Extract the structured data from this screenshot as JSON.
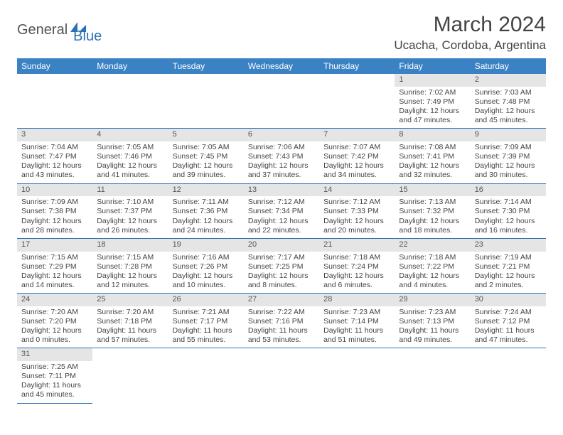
{
  "logo": {
    "general": "General",
    "blue": "Blue"
  },
  "title": "March 2024",
  "location": "Ucacha, Cordoba, Argentina",
  "colors": {
    "header_bg": "#3b82c4",
    "header_text": "#ffffff",
    "daynum_bg": "#e5e5e5",
    "rule": "#2c71b8",
    "text": "#444444",
    "logo_gray": "#555555",
    "logo_blue": "#2c71b8"
  },
  "day_headers": [
    "Sunday",
    "Monday",
    "Tuesday",
    "Wednesday",
    "Thursday",
    "Friday",
    "Saturday"
  ],
  "weeks": [
    [
      null,
      null,
      null,
      null,
      null,
      {
        "n": "1",
        "sr": "Sunrise: 7:02 AM",
        "ss": "Sunset: 7:49 PM",
        "dl": "Daylight: 12 hours and 47 minutes."
      },
      {
        "n": "2",
        "sr": "Sunrise: 7:03 AM",
        "ss": "Sunset: 7:48 PM",
        "dl": "Daylight: 12 hours and 45 minutes."
      }
    ],
    [
      {
        "n": "3",
        "sr": "Sunrise: 7:04 AM",
        "ss": "Sunset: 7:47 PM",
        "dl": "Daylight: 12 hours and 43 minutes."
      },
      {
        "n": "4",
        "sr": "Sunrise: 7:05 AM",
        "ss": "Sunset: 7:46 PM",
        "dl": "Daylight: 12 hours and 41 minutes."
      },
      {
        "n": "5",
        "sr": "Sunrise: 7:05 AM",
        "ss": "Sunset: 7:45 PM",
        "dl": "Daylight: 12 hours and 39 minutes."
      },
      {
        "n": "6",
        "sr": "Sunrise: 7:06 AM",
        "ss": "Sunset: 7:43 PM",
        "dl": "Daylight: 12 hours and 37 minutes."
      },
      {
        "n": "7",
        "sr": "Sunrise: 7:07 AM",
        "ss": "Sunset: 7:42 PM",
        "dl": "Daylight: 12 hours and 34 minutes."
      },
      {
        "n": "8",
        "sr": "Sunrise: 7:08 AM",
        "ss": "Sunset: 7:41 PM",
        "dl": "Daylight: 12 hours and 32 minutes."
      },
      {
        "n": "9",
        "sr": "Sunrise: 7:09 AM",
        "ss": "Sunset: 7:39 PM",
        "dl": "Daylight: 12 hours and 30 minutes."
      }
    ],
    [
      {
        "n": "10",
        "sr": "Sunrise: 7:09 AM",
        "ss": "Sunset: 7:38 PM",
        "dl": "Daylight: 12 hours and 28 minutes."
      },
      {
        "n": "11",
        "sr": "Sunrise: 7:10 AM",
        "ss": "Sunset: 7:37 PM",
        "dl": "Daylight: 12 hours and 26 minutes."
      },
      {
        "n": "12",
        "sr": "Sunrise: 7:11 AM",
        "ss": "Sunset: 7:36 PM",
        "dl": "Daylight: 12 hours and 24 minutes."
      },
      {
        "n": "13",
        "sr": "Sunrise: 7:12 AM",
        "ss": "Sunset: 7:34 PM",
        "dl": "Daylight: 12 hours and 22 minutes."
      },
      {
        "n": "14",
        "sr": "Sunrise: 7:12 AM",
        "ss": "Sunset: 7:33 PM",
        "dl": "Daylight: 12 hours and 20 minutes."
      },
      {
        "n": "15",
        "sr": "Sunrise: 7:13 AM",
        "ss": "Sunset: 7:32 PM",
        "dl": "Daylight: 12 hours and 18 minutes."
      },
      {
        "n": "16",
        "sr": "Sunrise: 7:14 AM",
        "ss": "Sunset: 7:30 PM",
        "dl": "Daylight: 12 hours and 16 minutes."
      }
    ],
    [
      {
        "n": "17",
        "sr": "Sunrise: 7:15 AM",
        "ss": "Sunset: 7:29 PM",
        "dl": "Daylight: 12 hours and 14 minutes."
      },
      {
        "n": "18",
        "sr": "Sunrise: 7:15 AM",
        "ss": "Sunset: 7:28 PM",
        "dl": "Daylight: 12 hours and 12 minutes."
      },
      {
        "n": "19",
        "sr": "Sunrise: 7:16 AM",
        "ss": "Sunset: 7:26 PM",
        "dl": "Daylight: 12 hours and 10 minutes."
      },
      {
        "n": "20",
        "sr": "Sunrise: 7:17 AM",
        "ss": "Sunset: 7:25 PM",
        "dl": "Daylight: 12 hours and 8 minutes."
      },
      {
        "n": "21",
        "sr": "Sunrise: 7:18 AM",
        "ss": "Sunset: 7:24 PM",
        "dl": "Daylight: 12 hours and 6 minutes."
      },
      {
        "n": "22",
        "sr": "Sunrise: 7:18 AM",
        "ss": "Sunset: 7:22 PM",
        "dl": "Daylight: 12 hours and 4 minutes."
      },
      {
        "n": "23",
        "sr": "Sunrise: 7:19 AM",
        "ss": "Sunset: 7:21 PM",
        "dl": "Daylight: 12 hours and 2 minutes."
      }
    ],
    [
      {
        "n": "24",
        "sr": "Sunrise: 7:20 AM",
        "ss": "Sunset: 7:20 PM",
        "dl": "Daylight: 12 hours and 0 minutes."
      },
      {
        "n": "25",
        "sr": "Sunrise: 7:20 AM",
        "ss": "Sunset: 7:18 PM",
        "dl": "Daylight: 11 hours and 57 minutes."
      },
      {
        "n": "26",
        "sr": "Sunrise: 7:21 AM",
        "ss": "Sunset: 7:17 PM",
        "dl": "Daylight: 11 hours and 55 minutes."
      },
      {
        "n": "27",
        "sr": "Sunrise: 7:22 AM",
        "ss": "Sunset: 7:16 PM",
        "dl": "Daylight: 11 hours and 53 minutes."
      },
      {
        "n": "28",
        "sr": "Sunrise: 7:23 AM",
        "ss": "Sunset: 7:14 PM",
        "dl": "Daylight: 11 hours and 51 minutes."
      },
      {
        "n": "29",
        "sr": "Sunrise: 7:23 AM",
        "ss": "Sunset: 7:13 PM",
        "dl": "Daylight: 11 hours and 49 minutes."
      },
      {
        "n": "30",
        "sr": "Sunrise: 7:24 AM",
        "ss": "Sunset: 7:12 PM",
        "dl": "Daylight: 11 hours and 47 minutes."
      }
    ],
    [
      {
        "n": "31",
        "sr": "Sunrise: 7:25 AM",
        "ss": "Sunset: 7:11 PM",
        "dl": "Daylight: 11 hours and 45 minutes."
      },
      null,
      null,
      null,
      null,
      null,
      null
    ]
  ]
}
